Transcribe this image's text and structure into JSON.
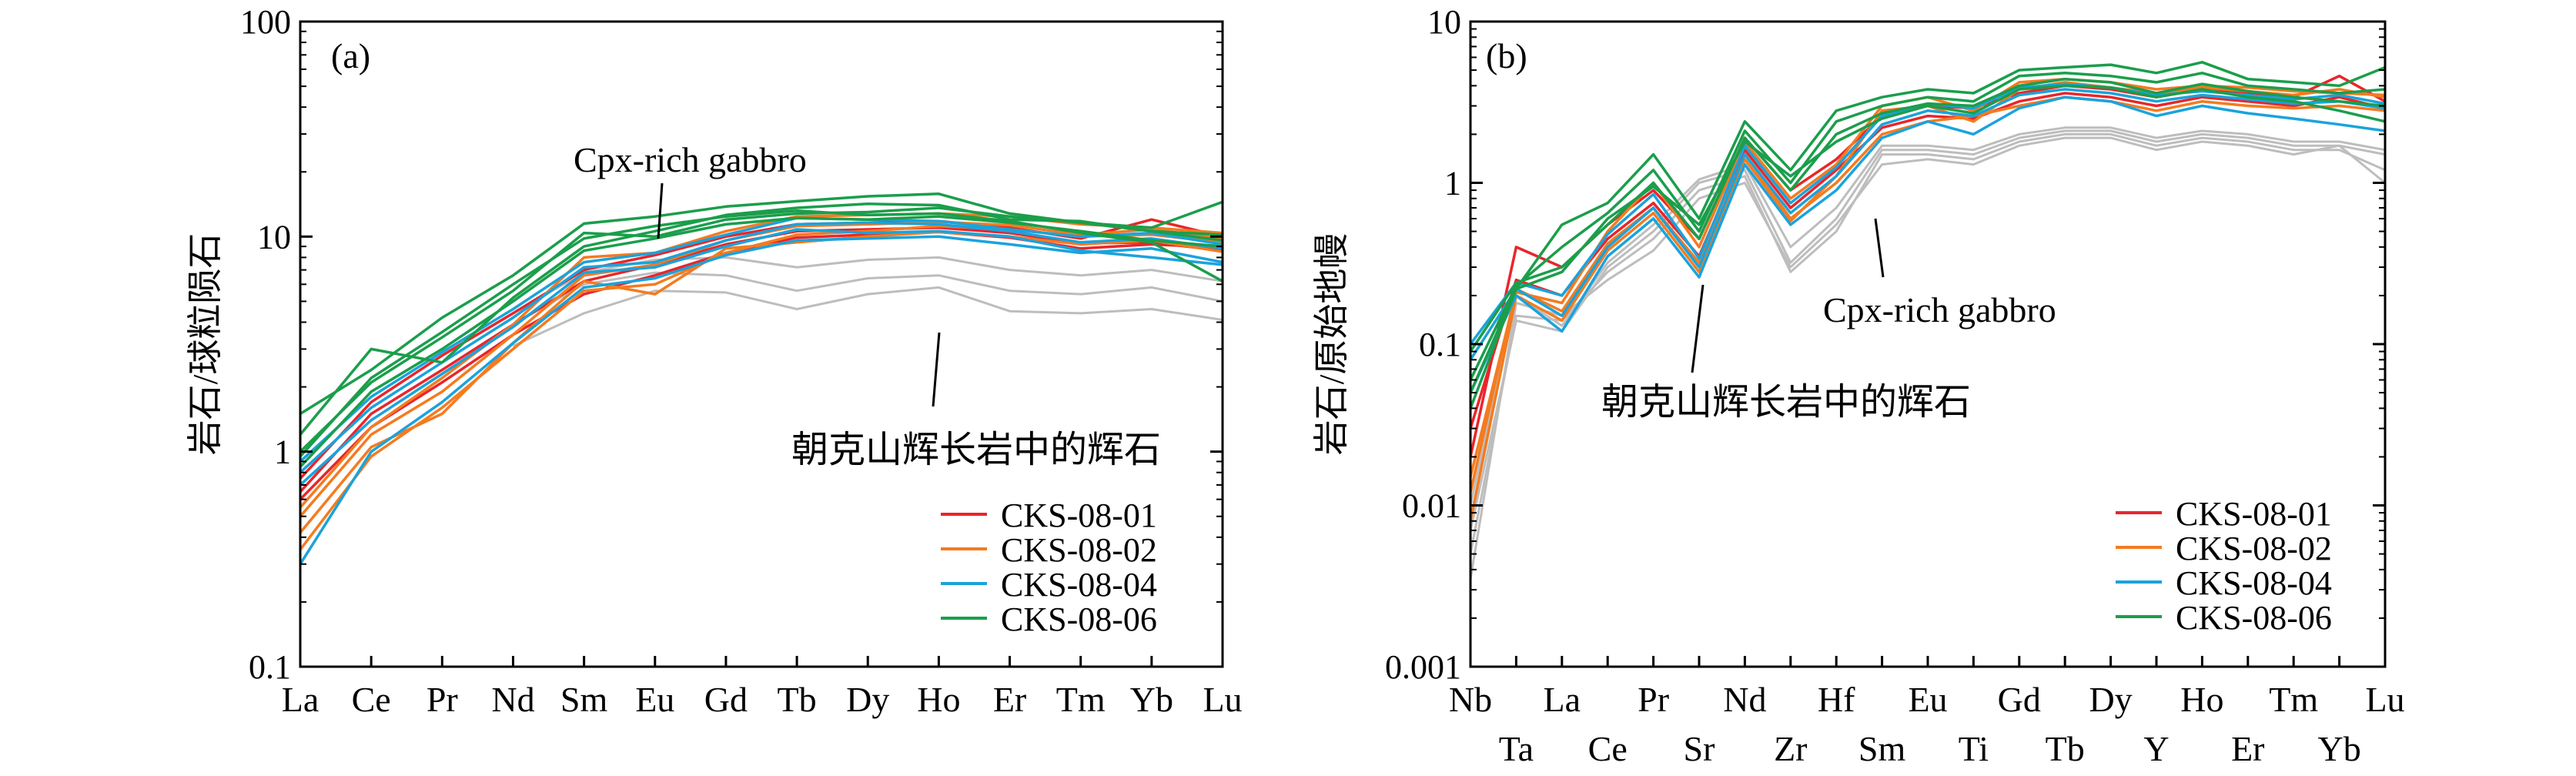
{
  "legend_entries": [
    {
      "name": "CKS-08-01",
      "color": "#e8262b"
    },
    {
      "name": "CKS-08-02",
      "color": "#f47b20"
    },
    {
      "name": "CKS-08-04",
      "color": "#1aa3dc"
    },
    {
      "name": "CKS-08-06",
      "color": "#1b9e4b"
    }
  ],
  "reference_color": "#bdbdbd",
  "chart_data": [
    {
      "type": "line",
      "panel_label": "(a)",
      "ylabel": "岩石/球粒陨石",
      "xlabel": "",
      "yscale": "log",
      "ylim": [
        0.1,
        100
      ],
      "yticks": [
        "0.1",
        "1",
        "10",
        "100"
      ],
      "categories": [
        "La",
        "Ce",
        "Pr",
        "Nd",
        "Sm",
        "Eu",
        "Gd",
        "Tb",
        "Dy",
        "Ho",
        "Er",
        "Tm",
        "Yb",
        "Lu"
      ],
      "annotations": [
        "Cpx-rich gabbro",
        "朝克山辉长岩中的辉石"
      ],
      "legend": [
        "CKS-08-01",
        "CKS-08-02",
        "CKS-08-04",
        "CKS-08-06"
      ],
      "legend_position": "bottom-right",
      "series": [
        {
          "group": "CKS-08-01",
          "values": [
            0.65,
            1.5,
            2.4,
            3.9,
            6.2,
            7.4,
            9.2,
            10.6,
            10.8,
            11.0,
            10.4,
            9.3,
            9.4,
            8.6
          ]
        },
        {
          "group": "CKS-08-01",
          "values": [
            0.75,
            1.7,
            2.8,
            4.4,
            7.0,
            8.2,
            10.0,
            11.4,
            11.6,
            11.8,
            11.0,
            9.8,
            12.0,
            10.0
          ]
        },
        {
          "group": "CKS-08-01",
          "values": [
            0.6,
            1.3,
            2.1,
            3.5,
            5.4,
            6.6,
            8.4,
            9.9,
            10.2,
            10.5,
            9.9,
            8.8,
            9.2,
            8.9
          ]
        },
        {
          "group": "CKS-08-02",
          "values": [
            0.35,
            0.95,
            1.6,
            3.0,
            5.6,
            6.0,
            8.4,
            10.2,
            10.6,
            11.2,
            10.8,
            10.0,
            10.2,
            9.4
          ]
        },
        {
          "group": "CKS-08-02",
          "values": [
            0.5,
            1.2,
            1.9,
            3.5,
            6.6,
            7.4,
            9.6,
            11.2,
            11.4,
            11.7,
            11.3,
            10.2,
            10.8,
            9.8
          ]
        },
        {
          "group": "CKS-08-02",
          "values": [
            0.42,
            1.05,
            1.5,
            3.2,
            6.2,
            5.4,
            8.8,
            9.4,
            10.0,
            10.5,
            10.0,
            9.2,
            9.6,
            8.5
          ]
        },
        {
          "group": "CKS-08-02",
          "values": [
            0.55,
            1.3,
            2.2,
            3.9,
            8.0,
            8.4,
            10.6,
            12.4,
            12.6,
            12.8,
            12.4,
            11.4,
            11.0,
            10.4
          ]
        },
        {
          "group": "CKS-08-04",
          "values": [
            0.3,
            1.0,
            1.7,
            3.2,
            5.8,
            6.4,
            8.2,
            9.6,
            9.8,
            10.0,
            9.2,
            8.4,
            8.8,
            7.6
          ]
        },
        {
          "group": "CKS-08-04",
          "values": [
            0.8,
            1.6,
            2.6,
            4.2,
            7.2,
            7.6,
            9.6,
            11.4,
            11.6,
            11.4,
            10.6,
            9.4,
            9.8,
            8.8
          ]
        },
        {
          "group": "CKS-08-04",
          "values": [
            0.7,
            1.4,
            2.3,
            3.8,
            6.8,
            7.2,
            9.0,
            10.8,
            10.4,
            10.6,
            10.0,
            8.6,
            8.0,
            7.4
          ]
        },
        {
          "group": "CKS-08-04",
          "values": [
            0.9,
            1.8,
            2.9,
            4.6,
            7.6,
            8.4,
            10.2,
            12.2,
            12.0,
            11.8,
            10.8,
            10.0,
            10.4,
            9.2
          ]
        },
        {
          "group": "CKS-08-06",
          "values": [
            1.5,
            2.4,
            4.2,
            6.6,
            11.5,
            12.4,
            13.8,
            14.6,
            15.4,
            15.8,
            12.8,
            11.6,
            11.0,
            14.5
          ]
        },
        {
          "group": "CKS-08-06",
          "values": [
            1.2,
            3.0,
            2.6,
            5.2,
            9.0,
            10.6,
            12.6,
            13.6,
            14.2,
            14.0,
            12.0,
            11.8,
            10.6,
            10.2
          ]
        },
        {
          "group": "CKS-08-06",
          "values": [
            1.0,
            2.1,
            3.4,
            5.6,
            10.4,
            10.0,
            12.0,
            12.8,
            13.0,
            13.6,
            12.4,
            11.6,
            10.6,
            9.6
          ]
        },
        {
          "group": "CKS-08-06",
          "values": [
            0.85,
            1.9,
            3.0,
            5.0,
            8.6,
            9.8,
            11.4,
            12.2,
            12.0,
            12.4,
            11.6,
            10.6,
            9.6,
            9.0
          ]
        },
        {
          "group": "CKS-08-06",
          "values": [
            0.95,
            2.2,
            3.6,
            6.0,
            9.8,
            11.2,
            12.4,
            13.2,
            12.6,
            12.8,
            11.8,
            10.4,
            9.4,
            6.2
          ]
        },
        {
          "group": "reference",
          "values": [
            null,
            null,
            null,
            3.1,
            4.4,
            5.6,
            5.5,
            4.6,
            5.4,
            5.8,
            4.5,
            4.4,
            4.6,
            4.1
          ]
        },
        {
          "group": "reference",
          "values": [
            null,
            null,
            null,
            3.9,
            6.0,
            6.8,
            6.6,
            5.6,
            6.4,
            6.6,
            5.6,
            5.4,
            5.8,
            5.0
          ]
        },
        {
          "group": "reference",
          "values": [
            null,
            null,
            null,
            4.4,
            6.8,
            7.8,
            8.0,
            7.2,
            7.8,
            8.0,
            7.0,
            6.6,
            7.0,
            6.2
          ]
        }
      ]
    },
    {
      "type": "line",
      "panel_label": "(b)",
      "ylabel": "岩石/原始地幔",
      "xlabel": "",
      "yscale": "log",
      "ylim": [
        0.001,
        10
      ],
      "yticks": [
        "0.001",
        "0.01",
        "0.1",
        "1",
        "10"
      ],
      "categories": [
        "Nb",
        "Ta",
        "La",
        "Ce",
        "Pr",
        "Sr",
        "Nd",
        "Zr",
        "Hf",
        "Sm",
        "Eu",
        "Ti",
        "Gd",
        "Tb",
        "Dy",
        "Y",
        "Ho",
        "Er",
        "Tm",
        "Yb",
        "Lu"
      ],
      "annotations": [
        "Cpx-rich gabbro",
        "朝克山辉长岩中的辉石"
      ],
      "legend": [
        "CKS-08-01",
        "CKS-08-02",
        "CKS-08-04",
        "CKS-08-06"
      ],
      "legend_position": "bottom-right",
      "series": [
        {
          "group": "CKS-08-01",
          "values": [
            0.02,
            0.4,
            0.3,
            0.55,
            0.9,
            0.45,
            1.9,
            0.9,
            1.4,
            2.6,
            3.0,
            2.9,
            3.6,
            4.0,
            3.8,
            3.4,
            3.8,
            3.6,
            3.4,
            4.6,
            3.2
          ]
        },
        {
          "group": "CKS-08-01",
          "values": [
            0.03,
            0.25,
            0.2,
            0.45,
            0.75,
            0.35,
            1.6,
            0.7,
            1.2,
            2.2,
            2.6,
            2.5,
            3.2,
            3.6,
            3.4,
            3.0,
            3.4,
            3.2,
            3.0,
            3.4,
            2.9
          ]
        },
        {
          "group": "CKS-08-02",
          "values": [
            0.012,
            0.22,
            0.16,
            0.42,
            0.7,
            0.32,
            1.5,
            0.6,
            1.0,
            2.0,
            2.4,
            2.6,
            3.0,
            3.4,
            3.2,
            2.8,
            3.2,
            3.0,
            2.9,
            3.0,
            2.8
          ]
        },
        {
          "group": "CKS-08-02",
          "values": [
            0.008,
            0.2,
            0.14,
            0.38,
            0.65,
            0.28,
            1.4,
            0.58,
            1.1,
            2.8,
            3.0,
            2.4,
            3.8,
            4.2,
            3.9,
            3.6,
            3.9,
            3.7,
            3.5,
            3.8,
            3.4
          ]
        },
        {
          "group": "CKS-08-02",
          "values": [
            0.015,
            0.21,
            0.18,
            0.5,
            1.0,
            0.4,
            1.8,
            0.8,
            1.3,
            3.0,
            3.4,
            2.8,
            4.2,
            4.4,
            4.2,
            3.8,
            4.0,
            3.9,
            3.7,
            3.6,
            3.5
          ]
        },
        {
          "group": "CKS-08-04",
          "values": [
            0.05,
            0.2,
            0.12,
            0.35,
            0.6,
            0.26,
            1.3,
            0.55,
            0.9,
            1.9,
            2.4,
            2.0,
            2.9,
            3.4,
            3.2,
            2.6,
            3.0,
            2.7,
            2.5,
            2.3,
            2.1
          ]
        },
        {
          "group": "CKS-08-04",
          "values": [
            0.08,
            0.22,
            0.15,
            0.4,
            0.7,
            0.3,
            1.5,
            0.65,
            1.1,
            2.3,
            2.8,
            2.6,
            3.5,
            3.8,
            3.6,
            3.2,
            3.5,
            3.3,
            3.1,
            3.2,
            2.9
          ]
        },
        {
          "group": "CKS-08-04",
          "values": [
            0.1,
            0.24,
            0.2,
            0.48,
            0.85,
            0.34,
            1.7,
            0.75,
            1.25,
            2.6,
            3.1,
            2.9,
            3.9,
            4.1,
            3.9,
            3.5,
            3.7,
            3.5,
            3.3,
            3.5,
            3.1
          ]
        },
        {
          "group": "CKS-08-06",
          "values": [
            0.04,
            0.22,
            0.55,
            0.75,
            1.5,
            0.6,
            2.4,
            1.2,
            2.8,
            3.4,
            3.8,
            3.6,
            5.0,
            5.2,
            5.4,
            4.8,
            5.6,
            4.4,
            4.2,
            4.0,
            5.2
          ]
        },
        {
          "group": "CKS-08-06",
          "values": [
            0.06,
            0.23,
            0.4,
            0.65,
            1.2,
            0.5,
            2.1,
            1.0,
            2.4,
            3.0,
            3.4,
            3.2,
            4.6,
            4.8,
            4.6,
            4.2,
            4.8,
            4.0,
            3.8,
            3.6,
            3.8
          ]
        },
        {
          "group": "CKS-08-06",
          "values": [
            0.09,
            0.24,
            0.3,
            0.55,
            1.0,
            0.45,
            1.9,
            0.9,
            2.0,
            2.7,
            3.1,
            3.0,
            4.0,
            4.4,
            4.2,
            3.6,
            4.1,
            3.7,
            3.4,
            3.2,
            3.0
          ]
        },
        {
          "group": "CKS-08-06",
          "values": [
            0.05,
            0.22,
            0.28,
            0.6,
            0.95,
            0.55,
            1.8,
            1.1,
            1.8,
            2.5,
            3.0,
            2.7,
            3.8,
            4.0,
            3.9,
            3.4,
            3.8,
            3.4,
            3.2,
            2.8,
            2.4
          ]
        },
        {
          "group": "reference",
          "values": [
            0.0035,
            0.18,
            0.15,
            0.25,
            0.38,
            0.8,
            1.0,
            0.3,
            0.55,
            1.3,
            1.4,
            1.3,
            1.7,
            1.9,
            1.9,
            1.6,
            1.8,
            1.7,
            1.5,
            1.7,
            1.5
          ]
        },
        {
          "group": "reference",
          "values": [
            0.005,
            0.15,
            0.14,
            0.28,
            0.45,
            0.9,
            1.1,
            0.28,
            0.5,
            1.5,
            1.5,
            1.4,
            1.8,
            2.0,
            2.0,
            1.7,
            1.9,
            1.8,
            1.6,
            1.6,
            1.2
          ]
        },
        {
          "group": "reference",
          "values": [
            0.007,
            0.14,
            0.12,
            0.3,
            0.5,
            1.0,
            1.2,
            0.32,
            0.6,
            1.6,
            1.6,
            1.5,
            1.9,
            2.1,
            2.1,
            1.8,
            2.0,
            1.9,
            1.7,
            1.7,
            1.0
          ]
        },
        {
          "group": "reference",
          "values": [
            0.01,
            0.2,
            0.13,
            0.32,
            0.55,
            1.05,
            1.3,
            0.4,
            0.7,
            1.7,
            1.7,
            1.6,
            2.0,
            2.2,
            2.2,
            1.9,
            2.1,
            2.0,
            1.8,
            1.8,
            1.6
          ]
        }
      ]
    }
  ]
}
